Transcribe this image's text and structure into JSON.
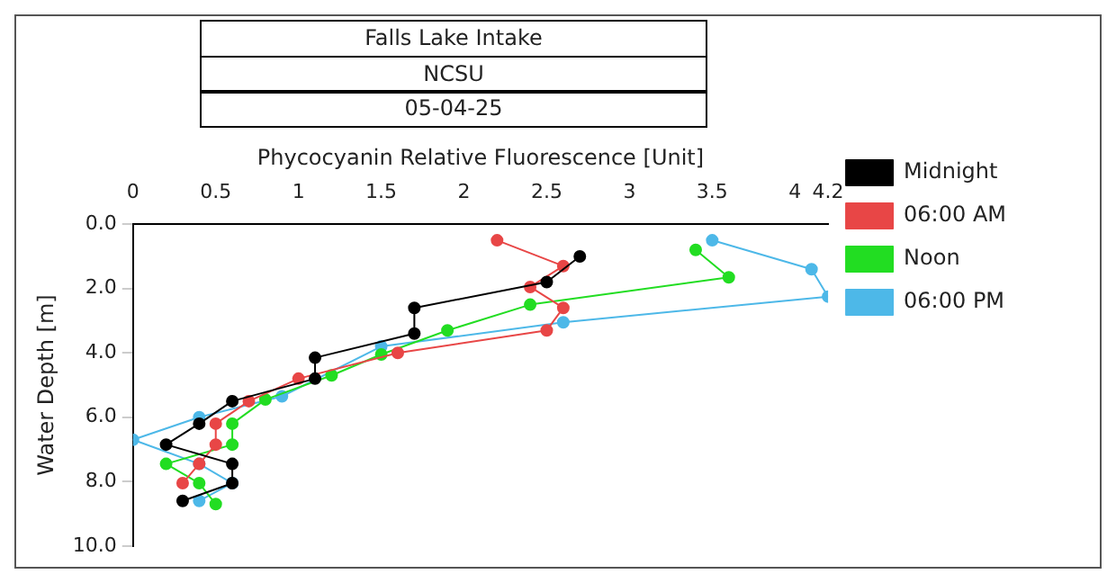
{
  "chart_data": {
    "type": "line",
    "title": "Falls Lake Intake",
    "subtitle": "NCSU",
    "annotations": [
      "05-04-25"
    ],
    "xlabel": "Phycocyanin Relative Fluorescence [Unit]",
    "ylabel": "Water Depth [m]",
    "xlim": [
      0,
      4.2
    ],
    "xticks": [
      0,
      0.5,
      1,
      1.5,
      2,
      2.5,
      3,
      3.5,
      4,
      4.2
    ],
    "ylim": [
      10,
      0
    ],
    "yticks": [
      {
        "value": 0,
        "label": "0.0"
      },
      {
        "value": 2,
        "label": "2.0"
      },
      {
        "value": 4,
        "label": "4.0"
      },
      {
        "value": 6,
        "label": "6.0"
      },
      {
        "value": 8,
        "label": "8.0"
      },
      {
        "value": 10,
        "label": "10.0"
      }
    ],
    "grid": false,
    "legend": "right",
    "marker": "circle",
    "line_style": "solid",
    "series": [
      {
        "name": "Midnight",
        "color": "#000000",
        "x": [
          2.7,
          2.5,
          1.7,
          1.7,
          1.1,
          1.1,
          0.6,
          0.4,
          0.2,
          0.6,
          0.6,
          0.3
        ],
        "values": [
          1.0,
          1.8,
          2.6,
          3.4,
          4.15,
          4.8,
          5.5,
          6.2,
          6.85,
          7.45,
          8.05,
          8.6
        ]
      },
      {
        "name": "06:00 AM",
        "color": "#e84646",
        "x": [
          2.2,
          2.6,
          2.4,
          2.6,
          2.5,
          1.6,
          1.0,
          0.7,
          0.5,
          0.5,
          0.4,
          0.3
        ],
        "values": [
          0.5,
          1.3,
          1.95,
          2.6,
          3.3,
          4.0,
          4.8,
          5.5,
          6.2,
          6.85,
          7.45,
          8.05
        ]
      },
      {
        "name": "Noon",
        "color": "#22dd22",
        "x": [
          3.4,
          3.6,
          2.4,
          1.9,
          1.5,
          1.2,
          0.8,
          0.6,
          0.6,
          0.2,
          0.4,
          0.5
        ],
        "values": [
          0.8,
          1.65,
          2.5,
          3.3,
          4.05,
          4.7,
          5.45,
          6.2,
          6.85,
          7.45,
          8.05,
          8.7
        ]
      },
      {
        "name": "06:00 PM",
        "color": "#4db8e8",
        "x": [
          3.5,
          4.1,
          4.2,
          2.6,
          1.5,
          0.9,
          0.4,
          0.0,
          0.4,
          0.6,
          0.4
        ],
        "values": [
          0.5,
          1.4,
          2.25,
          3.05,
          3.8,
          5.35,
          6.0,
          6.7,
          7.45,
          8.05,
          8.6
        ]
      }
    ]
  }
}
